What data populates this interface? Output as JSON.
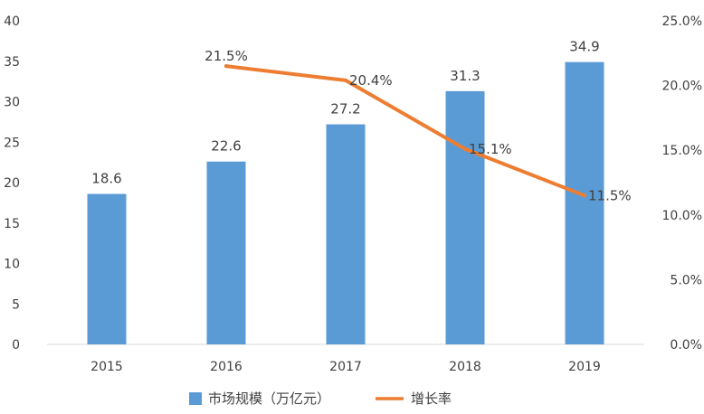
{
  "chart_data": {
    "type": "bar",
    "categories": [
      "2015",
      "2016",
      "2017",
      "2018",
      "2019"
    ],
    "series": [
      {
        "name": "市场规模（万亿元）",
        "type": "bar",
        "axis": "left",
        "values": [
          18.6,
          22.6,
          27.2,
          31.3,
          34.9
        ],
        "labels": [
          "18.6",
          "22.6",
          "27.2",
          "31.3",
          "34.9"
        ],
        "color": "#5b9bd5"
      },
      {
        "name": "增长率",
        "type": "line",
        "axis": "right",
        "values": [
          null,
          21.5,
          20.4,
          15.1,
          11.5
        ],
        "labels": [
          "",
          "21.5%",
          "20.4%",
          "15.1%",
          "11.5%"
        ],
        "color": "#ed7d31"
      }
    ],
    "ylim": [
      0,
      40
    ],
    "yticks": [
      "0",
      "5",
      "10",
      "15",
      "20",
      "25",
      "30",
      "35",
      "40"
    ],
    "y2lim": [
      0,
      25
    ],
    "y2ticks": [
      "0.0%",
      "5.0%",
      "10.0%",
      "15.0%",
      "20.0%",
      "25.0%"
    ],
    "title": "",
    "xlabel": "",
    "ylabel": "",
    "legend_position": "bottom",
    "grid": false
  }
}
